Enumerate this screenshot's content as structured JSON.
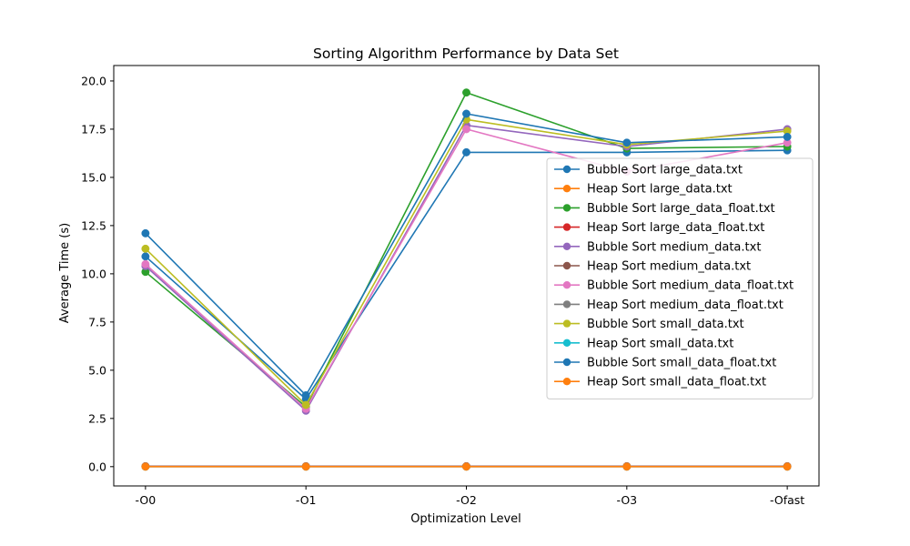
{
  "chart_data": {
    "type": "line",
    "title": "Sorting Algorithm Performance by Data Set",
    "xlabel": "Optimization Level",
    "ylabel": "Average Time (s)",
    "categories": [
      "-O0",
      "-O1",
      "-O2",
      "-O3",
      "-Ofast"
    ],
    "ylim": [
      -1.0,
      20.8
    ],
    "yticks": [
      0.0,
      2.5,
      5.0,
      7.5,
      10.0,
      12.5,
      15.0,
      17.5,
      20.0
    ],
    "ytick_labels": [
      "0.0",
      "2.5",
      "5.0",
      "7.5",
      "10.0",
      "12.5",
      "15.0",
      "17.5",
      "20.0"
    ],
    "grid": false,
    "legend_position": "center-right",
    "markers": "circle",
    "series": [
      {
        "name": "Bubble Sort large_data.txt",
        "color": "#1f77b4",
        "values": [
          10.9,
          3.5,
          16.3,
          16.3,
          16.4
        ]
      },
      {
        "name": "Heap Sort large_data.txt",
        "color": "#ff7f0e",
        "values": [
          0.02,
          0.02,
          0.02,
          0.02,
          0.02
        ]
      },
      {
        "name": "Bubble Sort large_data_float.txt",
        "color": "#2ca02c",
        "values": [
          10.1,
          3.1,
          19.4,
          16.5,
          16.6
        ]
      },
      {
        "name": "Heap Sort large_data_float.txt",
        "color": "#d62728",
        "values": [
          0.02,
          0.02,
          0.02,
          0.02,
          0.02
        ]
      },
      {
        "name": "Bubble Sort medium_data.txt",
        "color": "#9467bd",
        "values": [
          10.4,
          2.9,
          17.7,
          16.6,
          17.5
        ]
      },
      {
        "name": "Heap Sort medium_data.txt",
        "color": "#8c564b",
        "values": [
          0.01,
          0.01,
          0.01,
          0.01,
          0.01
        ]
      },
      {
        "name": "Bubble Sort medium_data_float.txt",
        "color": "#e377c2",
        "values": [
          10.5,
          3.0,
          17.5,
          15.3,
          16.8
        ]
      },
      {
        "name": "Heap Sort medium_data_float.txt",
        "color": "#7f7f7f",
        "values": [
          0.01,
          0.01,
          0.01,
          0.01,
          0.01
        ]
      },
      {
        "name": "Bubble Sort small_data.txt",
        "color": "#bcbd22",
        "values": [
          11.3,
          3.2,
          18.0,
          16.7,
          17.4
        ]
      },
      {
        "name": "Heap Sort small_data.txt",
        "color": "#17becf",
        "values": [
          0.0,
          0.0,
          0.0,
          0.0,
          0.0
        ]
      },
      {
        "name": "Bubble Sort small_data_float.txt",
        "color": "#1f77b4",
        "values": [
          12.1,
          3.7,
          18.3,
          16.8,
          17.1
        ]
      },
      {
        "name": "Heap Sort small_data_float.txt",
        "color": "#ff7f0e",
        "values": [
          0.0,
          0.0,
          0.0,
          0.0,
          0.0
        ]
      }
    ]
  }
}
